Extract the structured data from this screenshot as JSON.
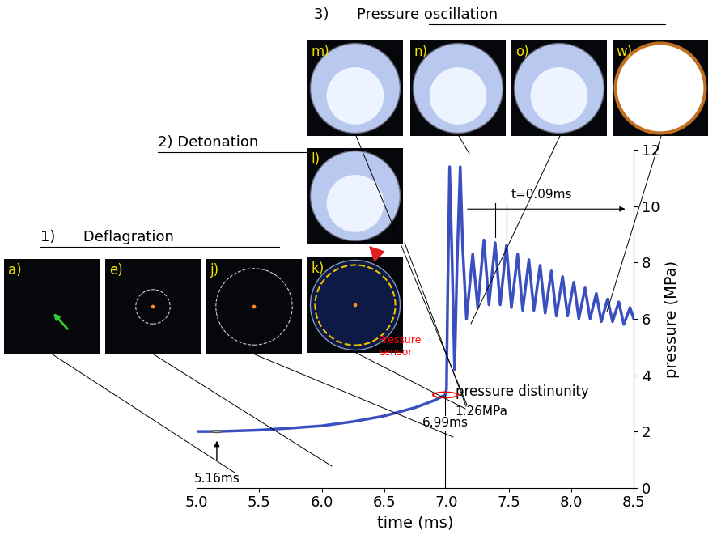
{
  "chart_data": {
    "type": "line",
    "x_label": "time (ms)",
    "y_label": "pressure (MPa)",
    "xlim": [
      5.0,
      8.5
    ],
    "xticks": [
      5.0,
      5.5,
      6.0,
      6.5,
      7.0,
      7.5,
      8.0,
      8.5
    ],
    "ylim": [
      0,
      12
    ],
    "yticks": [
      0,
      2,
      4,
      6,
      8,
      10,
      12
    ],
    "series": [
      {
        "name": "pressure",
        "color": "#3a4fc0",
        "x": [
          5.0,
          5.16,
          5.3,
          5.5,
          5.75,
          6.0,
          6.25,
          6.5,
          6.75,
          6.9,
          6.99,
          7.0,
          7.01,
          7.025,
          7.045,
          7.065,
          7.085,
          7.11,
          7.13,
          7.16,
          7.21,
          7.25,
          7.3,
          7.34,
          7.39,
          7.43,
          7.48,
          7.52,
          7.57,
          7.61,
          7.66,
          7.7,
          7.75,
          7.79,
          7.84,
          7.88,
          7.93,
          7.97,
          8.02,
          8.06,
          8.11,
          8.15,
          8.2,
          8.24,
          8.29,
          8.33,
          8.38,
          8.42,
          8.47,
          8.5
        ],
        "values": [
          2.0,
          2.0,
          2.02,
          2.05,
          2.12,
          2.2,
          2.35,
          2.55,
          2.85,
          3.1,
          3.3,
          3.5,
          7.0,
          11.4,
          8.0,
          4.2,
          8.0,
          11.4,
          8.5,
          6.0,
          8.3,
          6.4,
          8.8,
          6.5,
          8.7,
          6.5,
          8.6,
          6.4,
          8.3,
          6.3,
          8.1,
          6.3,
          7.9,
          6.2,
          7.7,
          6.1,
          7.5,
          6.1,
          7.3,
          6.0,
          7.1,
          6.0,
          6.9,
          5.9,
          6.7,
          5.9,
          6.6,
          5.8,
          6.4,
          6.0
        ]
      }
    ],
    "sections": [
      "1)      Deflagration",
      "2) Detonation",
      "3)      Pressure oscillation"
    ],
    "insets": [
      "a)",
      "e)",
      "j)",
      "k)",
      "l)",
      "m)",
      "n)",
      "o)",
      "w)"
    ],
    "annotations": [
      {
        "text": "5.16ms",
        "x": 5.16
      },
      {
        "text": "6.99ms",
        "x": 6.99
      },
      {
        "text": "1.26MPa"
      },
      {
        "text": "pressure distinunity"
      },
      {
        "text": "t=0.09ms"
      },
      {
        "text": "Pressure\nsensor"
      }
    ],
    "grid": false
  }
}
